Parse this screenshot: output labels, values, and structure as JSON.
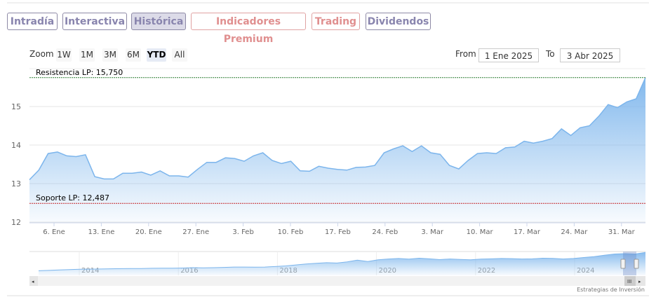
{
  "tabs": [
    {
      "label": "Intradía",
      "style": "gray",
      "active": false
    },
    {
      "label": "Interactiva",
      "style": "gray",
      "active": false
    },
    {
      "label": "Histórica",
      "style": "gray",
      "active": true
    },
    {
      "label": "Indicadores Premium",
      "style": "red",
      "active": false
    },
    {
      "label": "Trading",
      "style": "red",
      "active": false
    },
    {
      "label": "Dividendos",
      "style": "gray",
      "active": false
    }
  ],
  "zoom": {
    "label": "Zoom",
    "buttons": [
      "1W",
      "1M",
      "3M",
      "6M",
      "YTD",
      "All"
    ],
    "selected": "YTD"
  },
  "range": {
    "from_label": "From",
    "from": "1 Ene 2025",
    "to_label": "To",
    "to": "3 Abr 2025"
  },
  "credit": "Estrategias de Inversión",
  "chart_data": {
    "type": "area",
    "ylim": [
      12,
      15.8
    ],
    "yticks": [
      "12",
      "13",
      "14",
      "15"
    ],
    "ytick_values": [
      12,
      13,
      14,
      15
    ],
    "xticks": [
      "6. Ene",
      "13. Ene",
      "20. Ene",
      "27. Ene",
      "3. Feb",
      "10. Feb",
      "17. Feb",
      "24. Feb",
      "3. Mar",
      "10. Mar",
      "17. Mar",
      "24. Mar",
      "31. Mar"
    ],
    "lines": [
      {
        "label": "Resistencia LP: 15,750",
        "value": 15.75,
        "color": "#2e7d32"
      },
      {
        "label": "Soporte LP: 12,487",
        "value": 12.487,
        "color": "#c62828"
      }
    ],
    "values": [
      13.1,
      13.35,
      13.78,
      13.82,
      13.72,
      13.7,
      13.75,
      13.18,
      13.12,
      13.12,
      13.27,
      13.27,
      13.3,
      13.22,
      13.33,
      13.2,
      13.2,
      13.17,
      13.37,
      13.55,
      13.55,
      13.67,
      13.65,
      13.58,
      13.72,
      13.8,
      13.6,
      13.52,
      13.58,
      13.33,
      13.32,
      13.45,
      13.4,
      13.37,
      13.35,
      13.42,
      13.43,
      13.47,
      13.8,
      13.9,
      13.98,
      13.83,
      13.98,
      13.8,
      13.76,
      13.47,
      13.38,
      13.6,
      13.78,
      13.8,
      13.78,
      13.93,
      13.95,
      14.1,
      14.05,
      14.1,
      14.17,
      14.42,
      14.25,
      14.45,
      14.5,
      14.75,
      15.05,
      14.97,
      15.12,
      15.2,
      15.75
    ],
    "color": "#7cb5ec",
    "navigator": {
      "years": [
        "2014",
        "2016",
        "2018",
        "2020",
        "2022",
        "2024"
      ],
      "values": [
        2,
        2.2,
        2.5,
        2.7,
        2.9,
        3,
        3.1,
        3.2,
        3.3,
        3.4,
        3.4,
        3.5,
        3.6,
        3.6,
        3.7,
        3.9,
        3.8,
        3.9,
        4.1,
        4.3,
        4.3,
        4.2,
        4.3,
        4.6,
        5,
        5.6,
        6.2,
        6.6,
        7,
        6.8,
        7.5,
        8.6,
        7.7,
        8.8,
        9.3,
        9.6,
        9.2,
        9.8,
        9.4,
        8.9,
        9.3,
        9,
        8.8,
        9.2,
        9.4,
        9.6,
        9.5,
        9.3,
        9.4,
        9.8,
        9.7,
        9.3,
        9.6,
        10.2,
        10.8,
        11.6,
        12.4,
        12.6,
        12.4,
        13.4
      ]
    }
  }
}
